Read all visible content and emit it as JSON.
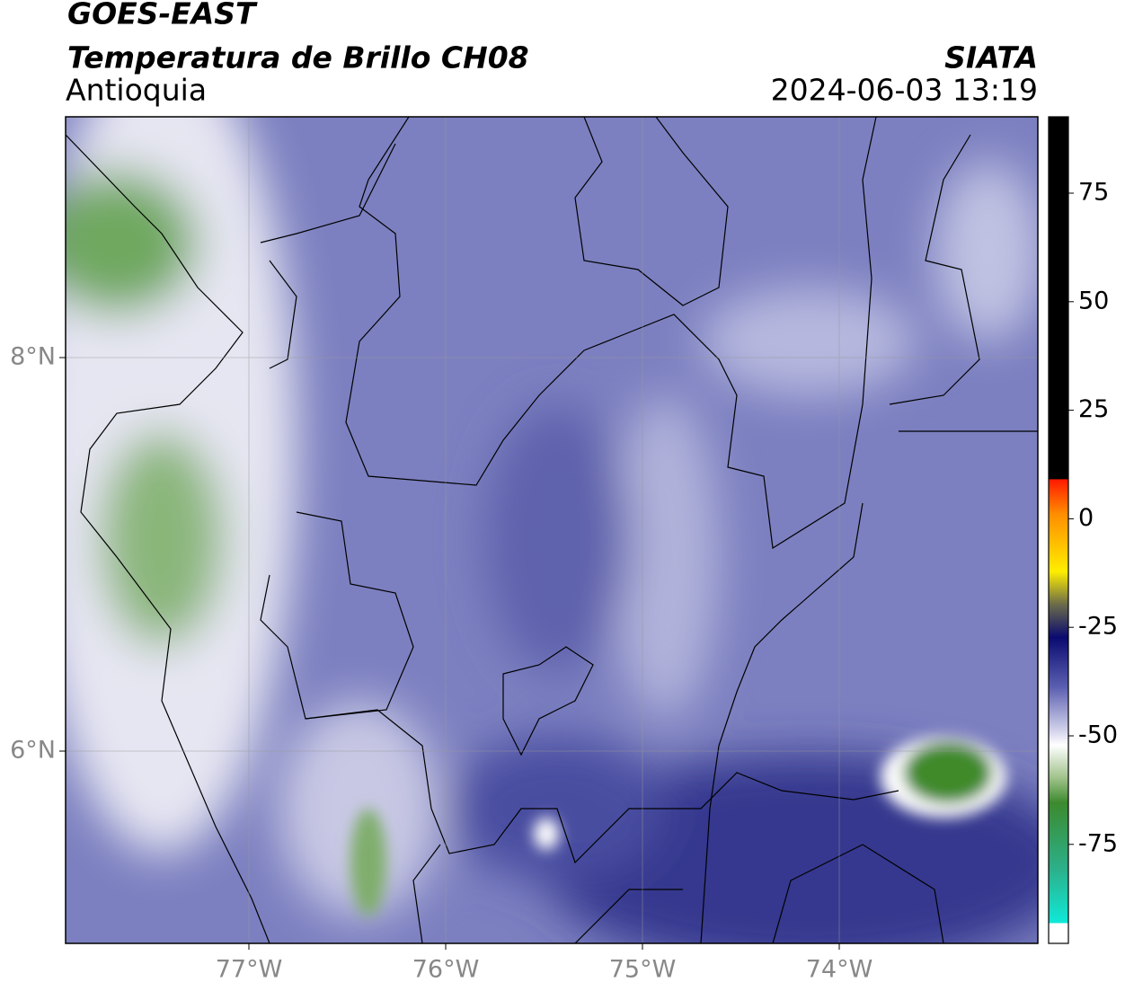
{
  "header": {
    "title": "GOES-EAST",
    "subtitle": "Temperatura de Brillo CH08",
    "region": "Antioquia",
    "source": "SIATA",
    "datetime": "2024-06-03 13:19"
  },
  "map": {
    "lat_labels": [
      "8°N",
      "6°N"
    ],
    "lon_labels": [
      "77°W",
      "76°W",
      "75°W",
      "74°W"
    ]
  },
  "colorbar": {
    "ticks": [
      75,
      50,
      25,
      0,
      -25,
      -50,
      -75
    ]
  }
}
